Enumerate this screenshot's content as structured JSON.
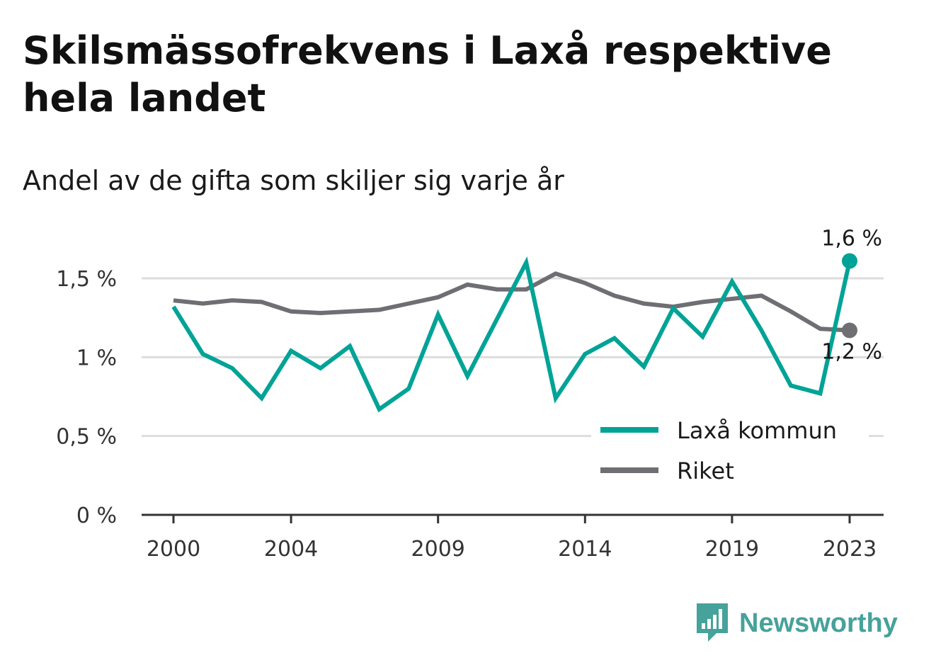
{
  "chart_data": {
    "type": "line",
    "title": "Skilsmässofrekvens i Laxå respektive hela landet",
    "subtitle": "Andel av de gifta som skiljer sig varje år",
    "x": [
      2000,
      2001,
      2002,
      2003,
      2004,
      2005,
      2006,
      2007,
      2008,
      2009,
      2010,
      2011,
      2012,
      2013,
      2014,
      2015,
      2016,
      2017,
      2018,
      2019,
      2020,
      2021,
      2022,
      2023
    ],
    "x_ticks": [
      2000,
      2004,
      2009,
      2014,
      2019,
      2023
    ],
    "x_tick_labels": [
      "2000",
      "2004",
      "2009",
      "2014",
      "2019",
      "2023"
    ],
    "ylim": [
      0,
      1.5
    ],
    "y_ticks": [
      0,
      0.5,
      1,
      1.5
    ],
    "y_tick_labels": [
      "0 %",
      "0,5 %",
      "1 %",
      "1,5 %"
    ],
    "grid": true,
    "legend_position": "bottom-right",
    "series": [
      {
        "name": "Laxå kommun",
        "color": "#00a396",
        "values": [
          1.32,
          1.02,
          0.93,
          0.74,
          1.04,
          0.93,
          1.07,
          0.67,
          0.8,
          1.27,
          0.88,
          1.24,
          1.6,
          0.74,
          1.02,
          1.12,
          0.94,
          1.31,
          1.13,
          1.48,
          1.17,
          0.82,
          0.77,
          1.61
        ],
        "end_label": "1,6 %"
      },
      {
        "name": "Riket",
        "color": "#6e6e73",
        "values": [
          1.36,
          1.34,
          1.36,
          1.35,
          1.29,
          1.28,
          1.29,
          1.3,
          1.34,
          1.38,
          1.46,
          1.43,
          1.43,
          1.53,
          1.47,
          1.39,
          1.34,
          1.32,
          1.35,
          1.37,
          1.39,
          1.29,
          1.18,
          1.17
        ],
        "end_label": "1,2 %"
      }
    ]
  },
  "brand": {
    "name": "Newsworthy",
    "logo_icon": "bar-chart-speech-bubble-icon",
    "color": "#46a29a"
  }
}
